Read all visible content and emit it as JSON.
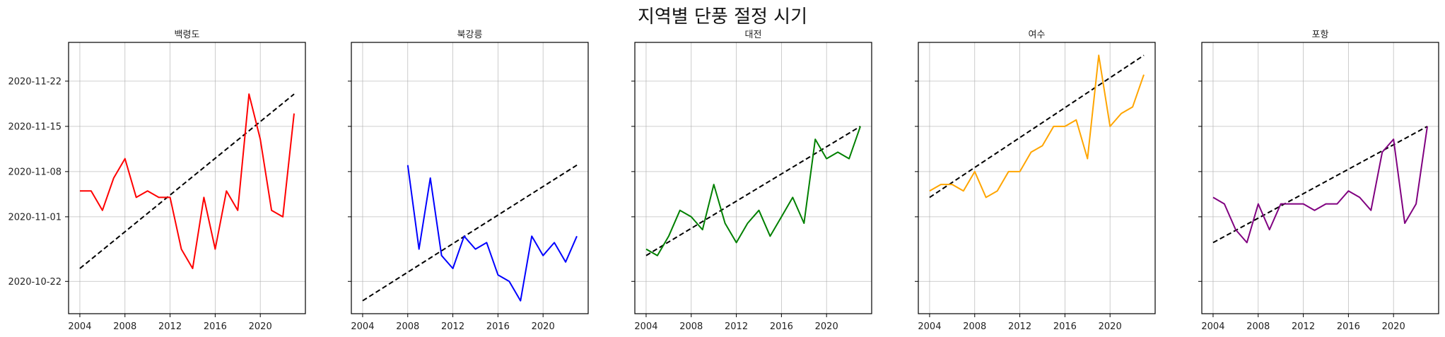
{
  "figure": {
    "title": "지역별 단풍 절정 시기"
  },
  "chart_data": [
    {
      "type": "line",
      "title": "백령도",
      "color": "#ff0000",
      "x": [
        2004,
        2005,
        2006,
        2007,
        2008,
        2009,
        2010,
        2011,
        2012,
        2013,
        2014,
        2015,
        2016,
        2017,
        2018,
        2019,
        2020,
        2021,
        2022,
        2023
      ],
      "y": [
        "2020-11-05",
        "2020-11-05",
        "2020-11-02",
        "2020-11-07",
        "2020-11-10",
        "2020-11-04",
        "2020-11-05",
        "2020-11-04",
        "2020-11-04",
        "2020-10-27",
        "2020-10-24",
        "2020-11-04",
        "2020-10-27",
        "2020-11-05",
        "2020-11-02",
        "2020-11-20",
        "2020-11-13",
        "2020-11-02",
        "2020-11-01",
        "2020-11-17"
      ],
      "trend": {
        "x": [
          2004,
          2023
        ],
        "y": [
          "2020-10-24",
          "2020-11-20"
        ]
      },
      "xlim": [
        2003,
        2024
      ],
      "ylim": [
        "2020-10-17",
        "2020-11-28"
      ],
      "xticks": [
        2004,
        2008,
        2012,
        2016,
        2020
      ],
      "yticks": [
        "2020-10-22",
        "2020-11-01",
        "2020-11-08",
        "2020-11-15",
        "2020-11-22"
      ],
      "grid": true
    },
    {
      "type": "line",
      "title": "북강릉",
      "color": "#0000ff",
      "x": [
        2008,
        2009,
        2010,
        2011,
        2012,
        2013,
        2014,
        2015,
        2016,
        2017,
        2018,
        2019,
        2020,
        2021,
        2022,
        2023
      ],
      "y": [
        "2020-11-09",
        "2020-10-27",
        "2020-11-07",
        "2020-10-26",
        "2020-10-24",
        "2020-10-29",
        "2020-10-27",
        "2020-10-28",
        "2020-10-23",
        "2020-10-22",
        "2020-10-19",
        "2020-10-29",
        "2020-10-26",
        "2020-10-28",
        "2020-10-25",
        "2020-10-29"
      ],
      "trend": {
        "x": [
          2004,
          2023
        ],
        "y": [
          "2020-10-19",
          "2020-11-09"
        ]
      },
      "xlim": [
        2003,
        2024
      ],
      "ylim": [
        "2020-10-17",
        "2020-11-28"
      ],
      "xticks": [
        2004,
        2008,
        2012,
        2016,
        2020
      ],
      "yticks": [
        "2020-10-22",
        "2020-11-01",
        "2020-11-08",
        "2020-11-15",
        "2020-11-22"
      ],
      "grid": true
    },
    {
      "type": "line",
      "title": "대전",
      "color": "#008000",
      "x": [
        2004,
        2005,
        2006,
        2007,
        2008,
        2009,
        2010,
        2011,
        2012,
        2013,
        2014,
        2015,
        2016,
        2017,
        2018,
        2019,
        2020,
        2021,
        2022,
        2023
      ],
      "y": [
        "2020-10-27",
        "2020-10-26",
        "2020-10-29",
        "2020-11-02",
        "2020-11-01",
        "2020-10-30",
        "2020-11-06",
        "2020-10-31",
        "2020-10-28",
        "2020-10-31",
        "2020-11-02",
        "2020-10-29",
        "2020-11-01",
        "2020-11-04",
        "2020-10-31",
        "2020-11-13",
        "2020-11-10",
        "2020-11-11",
        "2020-11-10",
        "2020-11-15"
      ],
      "trend": {
        "x": [
          2004,
          2023
        ],
        "y": [
          "2020-10-26",
          "2020-11-15"
        ]
      },
      "xlim": [
        2003,
        2024
      ],
      "ylim": [
        "2020-10-17",
        "2020-11-28"
      ],
      "xticks": [
        2004,
        2008,
        2012,
        2016,
        2020
      ],
      "yticks": [
        "2020-10-22",
        "2020-11-01",
        "2020-11-08",
        "2020-11-15",
        "2020-11-22"
      ],
      "grid": true
    },
    {
      "type": "line",
      "title": "여수",
      "color": "#ffa500",
      "x": [
        2004,
        2005,
        2006,
        2007,
        2008,
        2009,
        2010,
        2011,
        2012,
        2013,
        2014,
        2015,
        2016,
        2017,
        2018,
        2019,
        2020,
        2021,
        2022,
        2023
      ],
      "y": [
        "2020-11-05",
        "2020-11-06",
        "2020-11-06",
        "2020-11-05",
        "2020-11-08",
        "2020-11-04",
        "2020-11-05",
        "2020-11-08",
        "2020-11-08",
        "2020-11-11",
        "2020-11-12",
        "2020-11-15",
        "2020-11-15",
        "2020-11-16",
        "2020-11-10",
        "2020-11-26",
        "2020-11-15",
        "2020-11-17",
        "2020-11-18",
        "2020-11-23"
      ],
      "trend": {
        "x": [
          2004,
          2023
        ],
        "y": [
          "2020-11-04",
          "2020-11-26"
        ]
      },
      "xlim": [
        2003,
        2024
      ],
      "ylim": [
        "2020-10-17",
        "2020-11-28"
      ],
      "xticks": [
        2004,
        2008,
        2012,
        2016,
        2020
      ],
      "yticks": [
        "2020-10-22",
        "2020-11-01",
        "2020-11-08",
        "2020-11-15",
        "2020-11-22"
      ],
      "grid": true
    },
    {
      "type": "line",
      "title": "포항",
      "color": "#800080",
      "x": [
        2004,
        2005,
        2006,
        2007,
        2008,
        2009,
        2010,
        2011,
        2012,
        2013,
        2014,
        2015,
        2016,
        2017,
        2018,
        2019,
        2020,
        2021,
        2022,
        2023
      ],
      "y": [
        "2020-11-04",
        "2020-11-03",
        "2020-10-30",
        "2020-10-28",
        "2020-11-03",
        "2020-10-30",
        "2020-11-03",
        "2020-11-03",
        "2020-11-03",
        "2020-11-02",
        "2020-11-03",
        "2020-11-03",
        "2020-11-05",
        "2020-11-04",
        "2020-11-02",
        "2020-11-11",
        "2020-11-13",
        "2020-10-31",
        "2020-11-03",
        "2020-11-15"
      ],
      "trend": {
        "x": [
          2004,
          2023
        ],
        "y": [
          "2020-10-28",
          "2020-11-15"
        ]
      },
      "xlim": [
        2003,
        2024
      ],
      "ylim": [
        "2020-10-17",
        "2020-11-28"
      ],
      "xticks": [
        2004,
        2008,
        2012,
        2016,
        2020
      ],
      "yticks": [
        "2020-10-22",
        "2020-11-01",
        "2020-11-08",
        "2020-11-15",
        "2020-11-22"
      ],
      "grid": true
    }
  ]
}
